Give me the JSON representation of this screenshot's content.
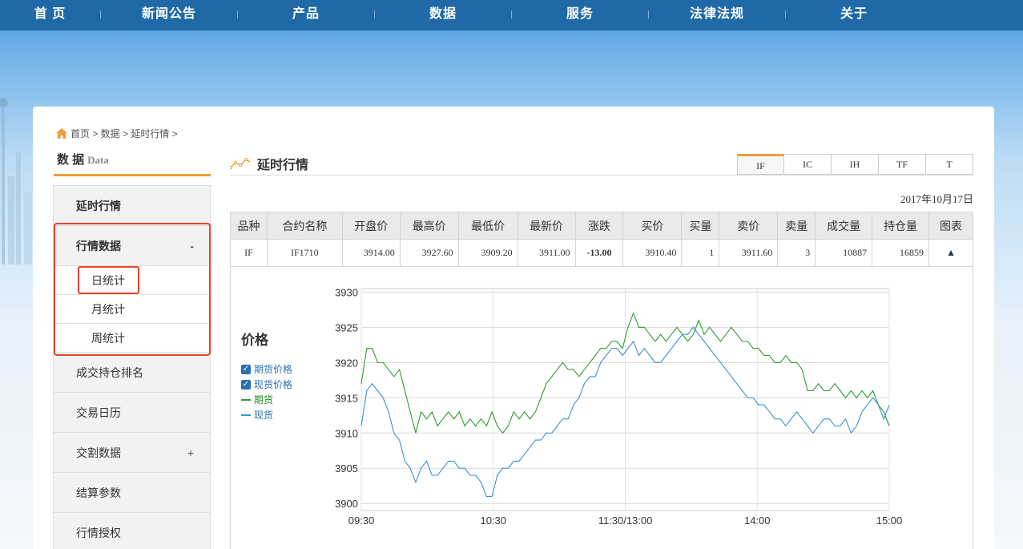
{
  "nav": {
    "items": [
      "首 页",
      "新闻公告",
      "产品",
      "数据",
      "服务",
      "法律法规",
      "关于"
    ]
  },
  "breadcrumb": {
    "text": "首页 > 数据 > 延时行情 >"
  },
  "sidebar": {
    "title": "数 据",
    "title_en": "Data",
    "items": [
      {
        "label": "延时行情",
        "toggle": ""
      },
      {
        "label": "行情数据",
        "toggle": "-"
      },
      {
        "label": "成交持仓排名",
        "toggle": ""
      },
      {
        "label": "交易日历",
        "toggle": ""
      },
      {
        "label": "交割数据",
        "toggle": "+"
      },
      {
        "label": "结算参数",
        "toggle": ""
      },
      {
        "label": "行情授权",
        "toggle": ""
      }
    ],
    "sub_items": [
      "日统计",
      "月统计",
      "周统计"
    ]
  },
  "content": {
    "title": "延时行情",
    "tabs": [
      "IF",
      "IC",
      "IH",
      "TF",
      "T"
    ],
    "date": "2017年10月17日"
  },
  "table": {
    "headers": [
      "品种",
      "合约名称",
      "开盘价",
      "最高价",
      "最低价",
      "最新价",
      "涨跌",
      "买价",
      "买量",
      "卖价",
      "卖量",
      "成交量",
      "持仓量",
      "图表"
    ],
    "row": {
      "variety": "IF",
      "contract": "IF1710",
      "open": "3914.00",
      "high": "3927.60",
      "low": "3909.20",
      "last": "3911.00",
      "change": "-13.00",
      "bid": "3910.40",
      "bid_vol": "1",
      "ask": "3911.60",
      "ask_vol": "3",
      "volume": "10887",
      "open_interest": "16859",
      "chart_icon": "▲"
    }
  },
  "legend": {
    "title": "价格",
    "futures_price": "期货价格",
    "spot_price": "现货价格",
    "futures": "期货",
    "spot": "现货"
  },
  "colors": {
    "nav_bg": "#1f6aa6",
    "accent": "#f19c38",
    "futures_line": "#2e9a2e",
    "spot_line": "#3a90d6",
    "highlight": "#e8432b"
  },
  "chart_data": {
    "type": "line",
    "x_ticks": [
      "09:30",
      "10:30",
      "11:30/13:00",
      "14:00",
      "15:00"
    ],
    "y_ticks": [
      3900,
      3905,
      3910,
      3915,
      3920,
      3925,
      3930
    ],
    "ylim": [
      3899,
      3930.5
    ],
    "series": [
      {
        "name": "期货",
        "values": [
          3917,
          3922,
          3922,
          3920,
          3920,
          3919,
          3918,
          3919,
          3916,
          3913,
          3910,
          3913,
          3912,
          3913,
          3911,
          3912,
          3913,
          3912,
          3913,
          3911,
          3912,
          3911,
          3912,
          3911,
          3913,
          3911,
          3910,
          3911,
          3913,
          3912,
          3913,
          3912,
          3913,
          3915,
          3917,
          3918,
          3919,
          3920,
          3919,
          3919,
          3918,
          3919,
          3920,
          3921,
          3922,
          3922,
          3923,
          3923,
          3922,
          3925,
          3927,
          3925,
          3925,
          3924,
          3923,
          3924,
          3923,
          3924,
          3925,
          3924,
          3923,
          3924,
          3926,
          3924,
          3925,
          3924,
          3923,
          3924,
          3925,
          3924,
          3923,
          3923,
          3922,
          3922,
          3921,
          3921,
          3920,
          3920,
          3921,
          3920,
          3920,
          3919,
          3916,
          3916,
          3917,
          3916,
          3916,
          3917,
          3916,
          3915,
          3916,
          3915,
          3916,
          3915,
          3916,
          3914,
          3913,
          3911
        ]
      },
      {
        "name": "现货",
        "values": [
          3911,
          3916,
          3917,
          3916,
          3915,
          3913,
          3910,
          3909,
          3906,
          3905,
          3903,
          3905,
          3906,
          3904,
          3904,
          3905,
          3906,
          3906,
          3905,
          3905,
          3904,
          3904,
          3903,
          3901,
          3901,
          3904,
          3905,
          3905,
          3906,
          3906,
          3907,
          3908,
          3909,
          3909,
          3910,
          3910,
          3911,
          3912,
          3912,
          3914,
          3915,
          3917,
          3918,
          3918,
          3920,
          3921,
          3922,
          3922,
          3921,
          3922,
          3923,
          3921,
          3922,
          3921,
          3920,
          3920,
          3921,
          3922,
          3923,
          3924,
          3924,
          3925,
          3924,
          3923,
          3922,
          3921,
          3920,
          3919,
          3918,
          3917,
          3916,
          3915,
          3915,
          3914,
          3914,
          3913,
          3912,
          3912,
          3911,
          3912,
          3913,
          3912,
          3911,
          3910,
          3911,
          3912,
          3912,
          3911,
          3911,
          3912,
          3910,
          3911,
          3913,
          3914,
          3915,
          3914,
          3912,
          3914
        ]
      }
    ],
    "grid": true
  }
}
